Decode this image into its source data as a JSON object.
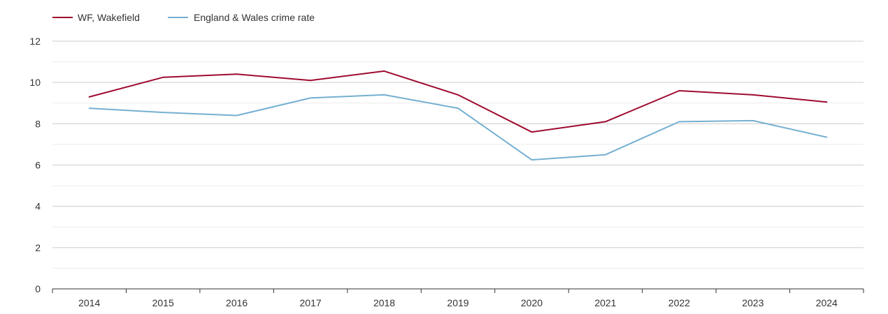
{
  "chart_data": {
    "type": "line",
    "title": "",
    "xlabel": "",
    "ylabel": "",
    "ylim": [
      0,
      12
    ],
    "y_ticks": [
      "0",
      "2",
      "4",
      "6",
      "8",
      "10",
      "12"
    ],
    "categories": [
      "2014",
      "2015",
      "2016",
      "2017",
      "2018",
      "2019",
      "2020",
      "2021",
      "2022",
      "2023",
      "2024"
    ],
    "grid": true,
    "legend_position": "top-left",
    "series": [
      {
        "name": "WF, Wakefield",
        "color": "#9e0b2f",
        "values": [
          9.3,
          10.25,
          10.4,
          10.1,
          10.55,
          9.4,
          7.6,
          8.1,
          9.6,
          9.4,
          9.05
        ]
      },
      {
        "name": "England & Wales crime rate",
        "color": "#74afd1",
        "values": [
          8.75,
          8.55,
          8.4,
          9.25,
          9.4,
          8.75,
          6.25,
          6.5,
          8.1,
          8.15,
          7.35
        ]
      }
    ]
  }
}
